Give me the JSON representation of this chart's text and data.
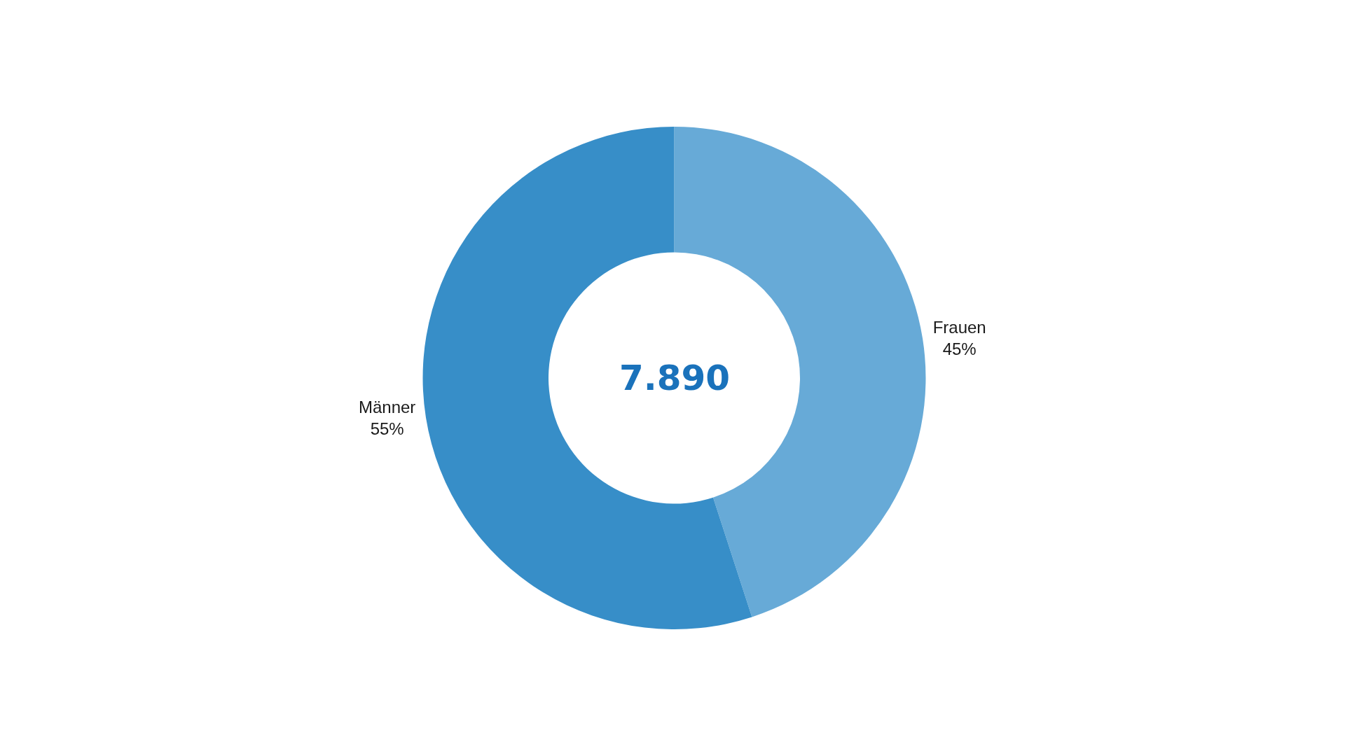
{
  "chart_data": {
    "type": "donut",
    "categories": [
      "Frauen",
      "Männer"
    ],
    "values": [
      45,
      55
    ],
    "colors": [
      "#67aad7",
      "#378ec8"
    ],
    "value_labels": [
      "45%",
      "55%"
    ],
    "annotations": [
      "7.890"
    ],
    "legend": false
  }
}
